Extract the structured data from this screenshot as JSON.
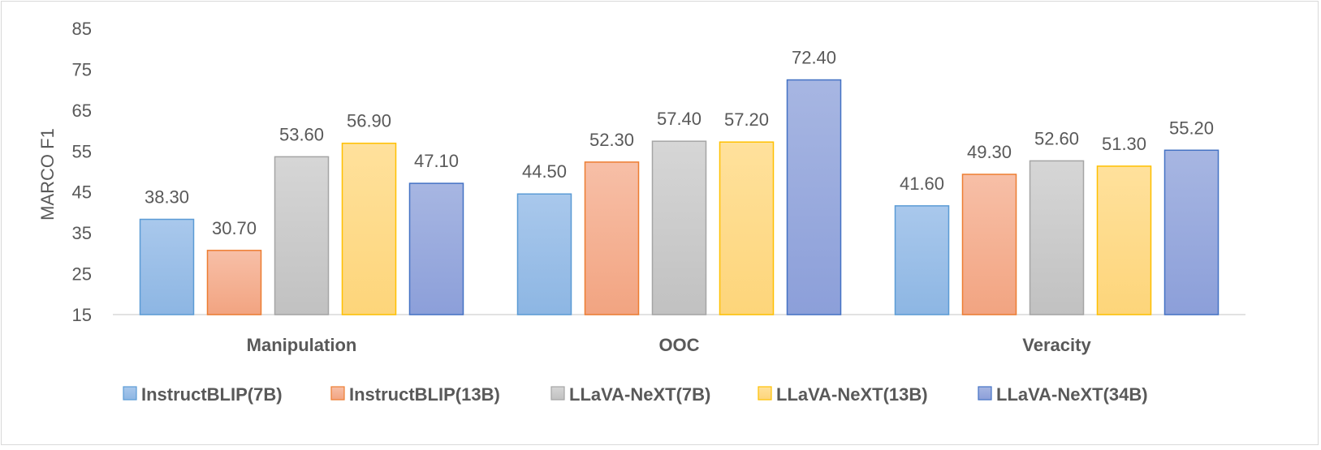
{
  "chart_data": {
    "type": "bar",
    "title": "",
    "xlabel": "",
    "ylabel": "MARCO F1",
    "ylim": [
      15,
      85
    ],
    "yticks": [
      15,
      25,
      35,
      45,
      55,
      65,
      75,
      85
    ],
    "ytick_labels": [
      "15",
      "25",
      "35",
      "45",
      "55",
      "65",
      "75",
      "85"
    ],
    "grid": false,
    "legend_position": "bottom",
    "categories": [
      "Manipulation",
      "OOC",
      "Veracity"
    ],
    "series": [
      {
        "name": "InstructBLIP(7B)",
        "values": [
          38.3,
          44.5,
          41.6
        ],
        "labels": [
          "38.30",
          "44.50",
          "41.60"
        ],
        "color_top": "#a9c8ec",
        "color_bottom": "#8db6e3",
        "stroke": "#5b9bd5"
      },
      {
        "name": "InstructBLIP(13B)",
        "values": [
          30.7,
          52.3,
          49.3
        ],
        "labels": [
          "30.70",
          "52.30",
          "49.30"
        ],
        "color_top": "#f7bfa7",
        "color_bottom": "#f2a481",
        "stroke": "#ed7d31"
      },
      {
        "name": "LLaVA-NeXT(7B)",
        "values": [
          53.6,
          57.4,
          52.6
        ],
        "labels": [
          "53.60",
          "57.40",
          "52.60"
        ],
        "color_top": "#d6d6d6",
        "color_bottom": "#c1c1c1",
        "stroke": "#a5a5a5"
      },
      {
        "name": "LLaVA-NeXT(13B)",
        "values": [
          56.9,
          57.2,
          51.3
        ],
        "labels": [
          "56.90",
          "57.20",
          "51.30"
        ],
        "color_top": "#ffe19c",
        "color_bottom": "#fdd57a",
        "stroke": "#ffc000"
      },
      {
        "name": "LLaVA-NeXT(34B)",
        "values": [
          47.1,
          72.4,
          55.2
        ],
        "labels": [
          "47.10",
          "72.40",
          "55.20"
        ],
        "color_top": "#a7b6e2",
        "color_bottom": "#8c9fd9",
        "stroke": "#4472c4"
      }
    ]
  }
}
